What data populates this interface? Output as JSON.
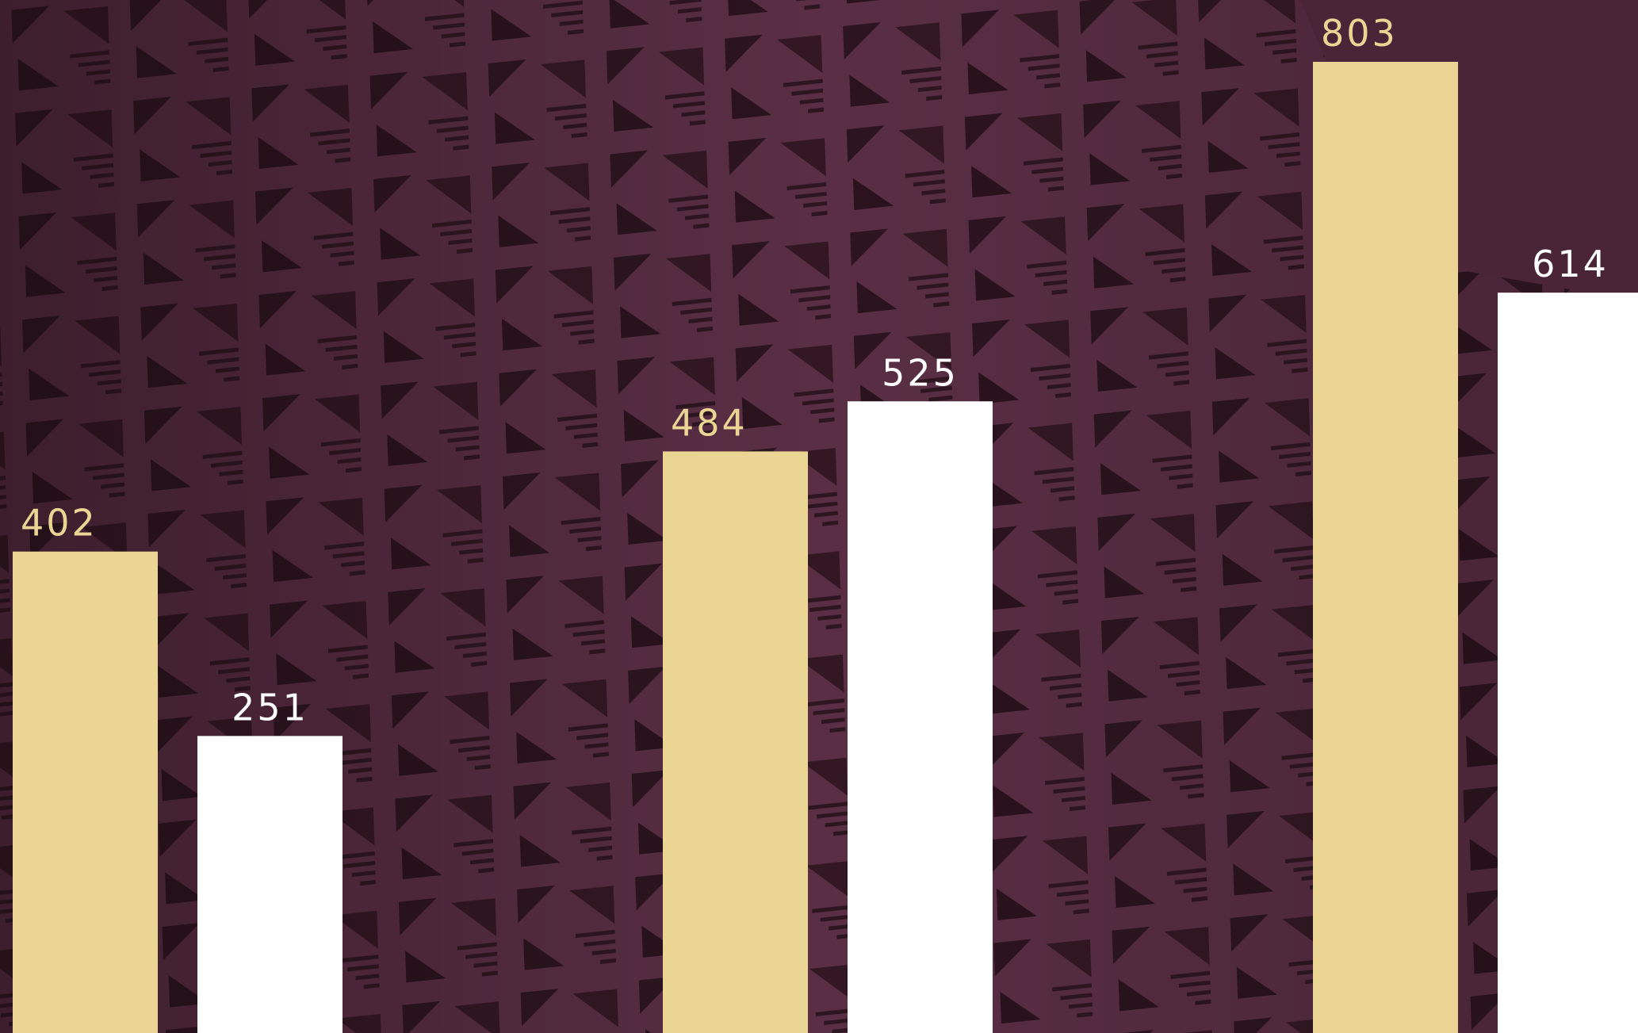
{
  "chart_data": {
    "type": "bar",
    "series": [
      {
        "color": "#ebd594",
        "values": [
          402,
          484,
          803
        ]
      },
      {
        "color": "#ffffff",
        "values": [
          251,
          525,
          614
        ]
      }
    ]
  }
}
